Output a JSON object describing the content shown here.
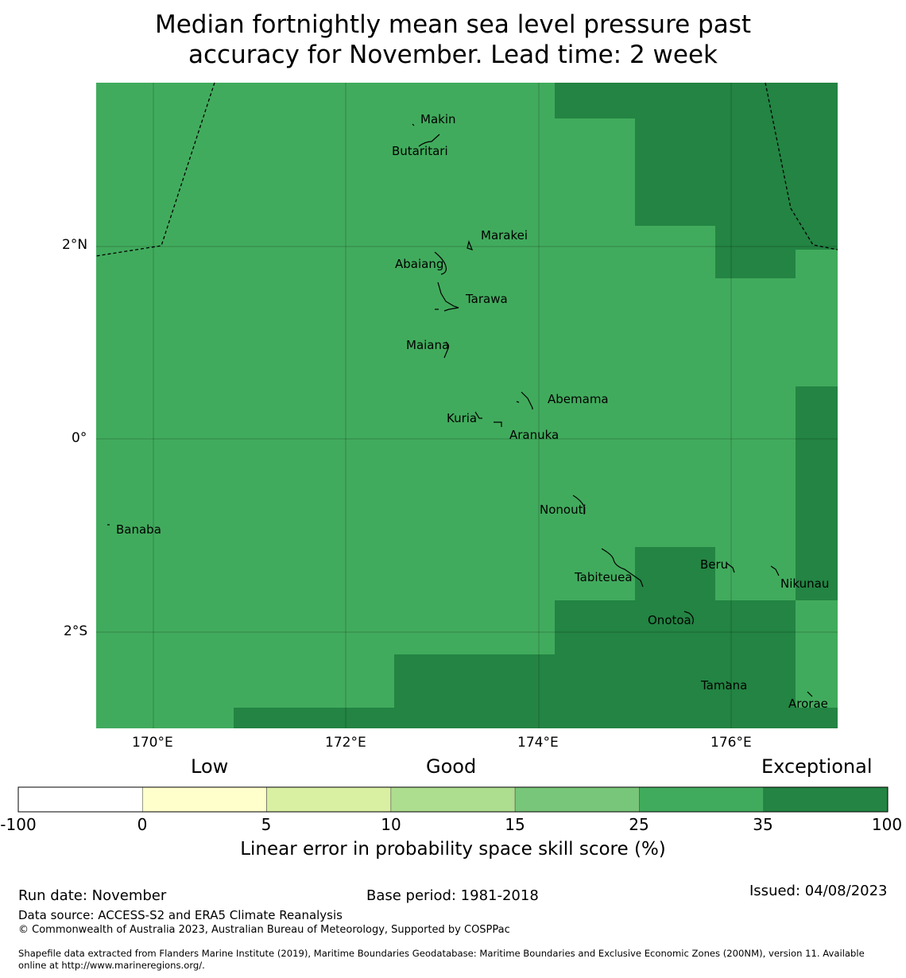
{
  "title": {
    "line1": "Median fortnightly mean sea level pressure past",
    "line2": "accuracy for November. Lead time: 2 week"
  },
  "map": {
    "lon_range": [
      169.4,
      177.1
    ],
    "lat_range": [
      -3.0,
      3.7
    ],
    "lon_ticks": [
      "170°E",
      "172°E",
      "174°E",
      "176°E"
    ],
    "lat_ticks": [
      "2°N",
      "0°",
      "2°S"
    ],
    "base_color": "#41ab5d",
    "high_color": "#238443",
    "islands": [
      {
        "name": "Makin"
      },
      {
        "name": "Butaritari"
      },
      {
        "name": "Marakei"
      },
      {
        "name": "Abaiang"
      },
      {
        "name": "Tarawa"
      },
      {
        "name": "Maiana"
      },
      {
        "name": "Abemama"
      },
      {
        "name": "Kuria"
      },
      {
        "name": "Aranuka"
      },
      {
        "name": "Nonouti"
      },
      {
        "name": "Banaba"
      },
      {
        "name": "Tabiteuea"
      },
      {
        "name": "Beru"
      },
      {
        "name": "Nikunau"
      },
      {
        "name": "Onotoa"
      },
      {
        "name": "Tamana"
      },
      {
        "name": "Arorae"
      }
    ]
  },
  "colorbar": {
    "categories": [
      "Low",
      "Good",
      "Exceptional"
    ],
    "ticks": [
      "-100",
      "0",
      "5",
      "10",
      "15",
      "25",
      "35",
      "100"
    ],
    "colors": [
      "#ffffff",
      "#ffffcc",
      "#d9f0a3",
      "#addd8e",
      "#78c679",
      "#41ab5d",
      "#238443"
    ],
    "label": "Linear error in probability space skill score (%)"
  },
  "footer": {
    "run_date": "Run date: November",
    "base_period": "Base period: 1981-2018",
    "issued": "Issued: 04/08/2023",
    "data_source": "Data source: ACCESS-S2 and ERA5 Climate Reanalysis",
    "copyright": "© Commonwealth of Australia 2023, Australian Bureau of Meteorology, Supported by COSPPac",
    "shapefile_line1": "Shapefile data extracted from Flanders Marine Institute (2019), Maritime Boundaries Geodatabase: Maritime Boundaries and Exclusive Economic Zones (200NM), version 11. Available",
    "shapefile_line2": "online at http://www.marineregions.org/."
  }
}
